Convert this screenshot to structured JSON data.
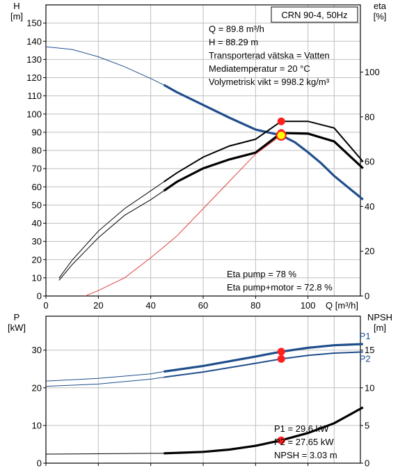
{
  "colors": {
    "curve_blue": "#1f4e8c",
    "system_red": "#e04040",
    "point_red": "#ff2020",
    "duty_fill": "#ffff00",
    "grid": "#bfbfbf",
    "black": "#000000"
  },
  "chart_data": [
    {
      "type": "line",
      "name": "head-efficiency",
      "title": "CRN 90-4, 50Hz",
      "xlabel": "Q [m³/h]",
      "y_left_label": "H\n[m]",
      "y_right_label": "eta\n[%]",
      "x_ticks": [
        0,
        20,
        40,
        60,
        80,
        100
      ],
      "y_left_ticks": [
        0,
        10,
        20,
        30,
        40,
        50,
        60,
        70,
        80,
        90,
        100,
        110,
        120,
        130,
        140,
        150
      ],
      "y_right_ticks": [
        0,
        20,
        40,
        60,
        80,
        100
      ],
      "xlim": [
        0,
        120
      ],
      "ylim_left": [
        0,
        160
      ],
      "ylim_right": [
        0,
        130
      ],
      "grid": true,
      "info_lines": [
        "Q = 89.8 m³/h",
        "H = 88.29 m",
        "Transporterad vätska = Vatten",
        "Mediatemperatur = 20 °C",
        "Volymetrisk vikt = 998.2 kg/m³"
      ],
      "eta_lines": [
        "Eta pump = 78 %",
        "Eta pump+motor = 72.8 %"
      ],
      "series": [
        {
          "id": "H",
          "axis": "left",
          "x": [
            0,
            10,
            20,
            30,
            40,
            45,
            50,
            60,
            70,
            80,
            89.8,
            95,
            100,
            105,
            110,
            121
          ],
          "y": [
            137,
            135.5,
            131.5,
            126,
            119.5,
            116,
            112,
            105,
            98,
            91.5,
            88.29,
            84.5,
            79,
            73,
            66,
            53
          ],
          "op_range": [
            45,
            121
          ]
        },
        {
          "id": "eta-pump",
          "axis": "right",
          "x": [
            5,
            10,
            20,
            30,
            40,
            45,
            50,
            60,
            70,
            80,
            89.8,
            100,
            110,
            121
          ],
          "y": [
            8,
            16,
            29,
            39,
            47,
            51,
            55,
            62,
            67,
            70,
            78,
            78,
            75,
            60
          ],
          "op_range": [
            45,
            121
          ]
        },
        {
          "id": "eta-motor",
          "axis": "right",
          "x": [
            5,
            10,
            20,
            30,
            40,
            45,
            50,
            60,
            70,
            80,
            89.8,
            100,
            110,
            121
          ],
          "y": [
            7,
            14,
            26,
            36,
            43,
            47,
            51,
            57,
            61,
            64,
            72.8,
            72.5,
            69,
            57
          ],
          "op_range": [
            45,
            121
          ]
        },
        {
          "id": "system",
          "axis": "left",
          "x": [
            15,
            20,
            30,
            40,
            50,
            60,
            70,
            80,
            89.8
          ],
          "y": [
            0,
            3,
            10,
            21,
            33,
            48,
            63,
            78,
            88.29
          ]
        }
      ],
      "duty_point": {
        "x": 89.8,
        "y": 88.29
      },
      "eta_points": [
        {
          "x": 89.8,
          "y": 78
        },
        {
          "x": 89.8,
          "y": 72.8
        }
      ]
    },
    {
      "type": "line",
      "name": "power-npsh",
      "xlabel": "",
      "y_left_label": "P\n[kW]",
      "y_right_label": "NPSH\n[m]",
      "x_ticks": [
        0,
        20,
        40,
        60,
        80,
        100
      ],
      "y_left_ticks": [
        0,
        10,
        20,
        30
      ],
      "y_right_ticks": [
        0,
        5,
        10,
        15
      ],
      "xlim": [
        0,
        120
      ],
      "ylim_left": [
        0,
        39
      ],
      "ylim_right": [
        0,
        19.5
      ],
      "grid": true,
      "info_lines": [
        "P1 = 29.6 kW",
        "P2 = 27.65 kW",
        "NPSH = 3.03 m"
      ],
      "series": [
        {
          "id": "P1",
          "name": "P1",
          "axis": "left",
          "x": [
            0,
            20,
            40,
            45,
            60,
            80,
            89.8,
            100,
            110,
            121
          ],
          "y": [
            21.8,
            22.5,
            23.7,
            24.3,
            25.8,
            28.3,
            29.6,
            30.6,
            31.3,
            31.6
          ],
          "op_range": [
            45,
            121
          ]
        },
        {
          "id": "P2",
          "name": "P2",
          "axis": "left",
          "x": [
            0,
            20,
            40,
            45,
            60,
            80,
            89.8,
            100,
            110,
            121
          ],
          "y": [
            20.4,
            21.0,
            22.3,
            22.8,
            24.2,
            26.5,
            27.65,
            28.6,
            29.2,
            29.5
          ],
          "op_range": [
            45,
            121
          ]
        },
        {
          "id": "NPSH",
          "axis": "right",
          "x": [
            0,
            20,
            40,
            45,
            60,
            70,
            80,
            89.8,
            100,
            110,
            121
          ],
          "y": [
            1.2,
            1.25,
            1.3,
            1.3,
            1.5,
            1.8,
            2.3,
            3.03,
            4.0,
            5.3,
            7.4
          ],
          "op_range": [
            45,
            121
          ]
        }
      ],
      "points": [
        {
          "series": "P1",
          "x": 89.8,
          "y": 29.6
        },
        {
          "series": "P2",
          "x": 89.8,
          "y": 27.65
        },
        {
          "series": "NPSH",
          "x": 89.8,
          "y": 3.03
        }
      ]
    }
  ]
}
